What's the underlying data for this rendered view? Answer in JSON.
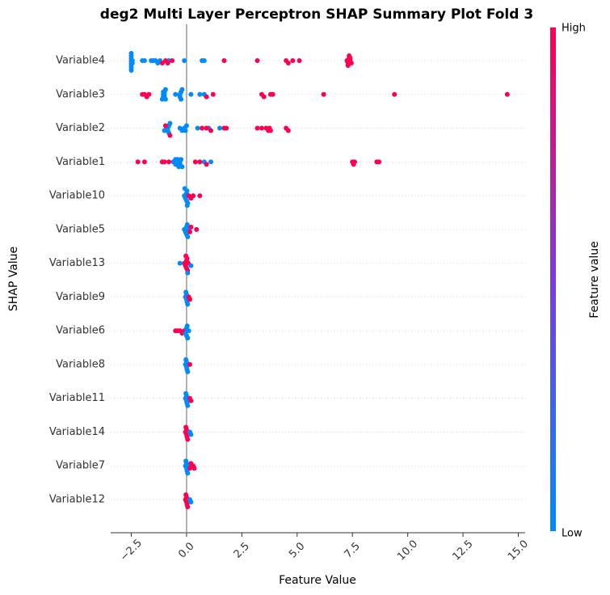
{
  "chart_data": {
    "type": "beeswarm",
    "title": "deg2 Multi Layer Perceptron SHAP Summary Plot Fold 3",
    "xlabel": "Feature Value",
    "ylabel": "SHAP Value",
    "xlim": [
      -3.43,
      15.31
    ],
    "xticks": [
      {
        "value": -2.5,
        "label": "−2.5"
      },
      {
        "value": 0,
        "label": "0.0"
      },
      {
        "value": 2.5,
        "label": "2.5"
      },
      {
        "value": 5,
        "label": "5.0"
      },
      {
        "value": 7.5,
        "label": "7.5"
      },
      {
        "value": 10,
        "label": "10.0"
      },
      {
        "value": 12.5,
        "label": "12.5"
      },
      {
        "value": 15,
        "label": "15.0"
      }
    ],
    "colorbar": {
      "label": "Feature value",
      "high": "High",
      "low": "Low",
      "colors": [
        "#008bfb",
        "#7c3bd9",
        "#ff0051"
      ]
    },
    "series": [
      {
        "name": "Variable4",
        "values": [
          -2.5,
          -2.5,
          -2.5,
          -2.5,
          -2.5,
          -2.5,
          -2.5,
          -2.5,
          -2.45,
          -2.45,
          -2.0,
          -1.9,
          -1.6,
          -1.5,
          -1.4,
          -1.3,
          -1.2,
          -0.8,
          -0.1,
          0.7,
          0.8,
          -1.1,
          -0.95,
          -0.85,
          -0.65,
          1.7,
          3.2,
          4.5,
          4.6,
          4.8,
          5.1,
          7.25,
          7.3,
          7.35,
          7.4,
          7.45,
          7.3,
          7.35,
          7.4
        ],
        "feature_values": [
          0,
          0,
          0,
          0,
          0,
          0,
          0,
          0,
          0,
          0,
          0,
          0,
          0,
          0,
          0,
          0,
          0,
          0,
          0,
          0,
          0,
          1,
          1,
          1,
          1,
          1,
          1,
          1,
          1,
          1,
          1,
          1,
          1,
          1,
          1,
          1,
          1,
          1,
          1
        ]
      },
      {
        "name": "Variable3",
        "values": [
          -1.05,
          -1.05,
          -1.05,
          -1.0,
          -1.0,
          -1.0,
          -0.95,
          -0.95,
          -1.1,
          -0.3,
          -0.3,
          -0.25,
          -0.25,
          -0.2,
          -0.5,
          0.2,
          0.6,
          0.8,
          -2.0,
          -1.9,
          -1.8,
          -1.7,
          0.9,
          1.2,
          3.4,
          3.5,
          3.8,
          3.9,
          6.2,
          9.4,
          14.5
        ],
        "feature_values": [
          0,
          0,
          0,
          0,
          0,
          0,
          0,
          0,
          0,
          0,
          0,
          0,
          0,
          0,
          0,
          0,
          0,
          0,
          1,
          1,
          1,
          1,
          1,
          1,
          1,
          1,
          1,
          1,
          1,
          1,
          1
        ]
      },
      {
        "name": "Variable2",
        "values": [
          -0.9,
          -0.85,
          -0.85,
          -0.8,
          -0.8,
          -0.75,
          -1.0,
          -0.3,
          -0.2,
          -0.1,
          -0.05,
          0.0,
          0.5,
          1.0,
          1.5,
          -0.95,
          -0.75,
          0.7,
          0.9,
          1.1,
          1.7,
          1.8,
          3.2,
          3.4,
          3.6,
          3.7,
          3.75,
          3.8,
          4.5,
          4.6
        ],
        "feature_values": [
          0,
          0,
          0,
          0,
          0,
          0,
          0,
          0,
          0,
          0,
          0,
          0,
          0,
          0,
          0,
          1,
          1,
          1,
          1,
          1,
          1,
          1,
          1,
          1,
          1,
          1,
          1,
          1,
          1,
          1
        ]
      },
      {
        "name": "Variable1",
        "values": [
          -0.6,
          -0.5,
          -0.5,
          -0.45,
          -0.4,
          -0.4,
          -0.35,
          -0.3,
          -0.3,
          -0.25,
          -0.2,
          0.8,
          1.1,
          -2.2,
          -1.9,
          -1.1,
          -1.0,
          -0.8,
          0.4,
          0.6,
          0.9,
          7.5,
          7.6,
          7.55,
          8.6,
          8.7
        ],
        "feature_values": [
          0,
          0,
          0,
          0,
          0,
          0,
          0,
          0,
          0,
          0,
          0,
          0,
          0,
          1,
          1,
          1,
          1,
          1,
          1,
          1,
          1,
          1,
          1,
          1,
          1,
          1
        ]
      },
      {
        "name": "Variable10",
        "values": [
          -0.1,
          -0.05,
          0,
          0,
          0.02,
          0.05,
          -0.08,
          0.03,
          0.1,
          0.2,
          0.3,
          0.6
        ],
        "feature_values": [
          0,
          0,
          0,
          0,
          0,
          0,
          0,
          0,
          1,
          1,
          1,
          1
        ]
      },
      {
        "name": "Variable5",
        "values": [
          -0.1,
          -0.05,
          0,
          0,
          0.03,
          0.05,
          0.1,
          0.15,
          0.2,
          0.45
        ],
        "feature_values": [
          0,
          0,
          0,
          0,
          0,
          0,
          0,
          1,
          1,
          1
        ]
      },
      {
        "name": "Variable13",
        "values": [
          -0.1,
          -0.05,
          0,
          0,
          0.02,
          0.05,
          -0.03,
          0.08,
          -0.3,
          0.2,
          0.05
        ],
        "feature_values": [
          1,
          1,
          1,
          1,
          1,
          1,
          1,
          1,
          0,
          0,
          0
        ]
      },
      {
        "name": "Variable9",
        "values": [
          -0.05,
          0,
          0,
          0.02,
          -0.03,
          0.05,
          0.1,
          0.15
        ],
        "feature_values": [
          0,
          0,
          0,
          0,
          0,
          0,
          1,
          1
        ]
      },
      {
        "name": "Variable6",
        "values": [
          -0.5,
          -0.4,
          -0.3,
          -0.2,
          -0.1,
          -0.05,
          0,
          0,
          0.03,
          0.05,
          0.1
        ],
        "feature_values": [
          1,
          1,
          1,
          1,
          1,
          0,
          0,
          0,
          0,
          0,
          0
        ]
      },
      {
        "name": "Variable8",
        "values": [
          -0.05,
          0,
          0,
          0.02,
          -0.03,
          0.05,
          0.15
        ],
        "feature_values": [
          0,
          0,
          0,
          0,
          0,
          0,
          1
        ]
      },
      {
        "name": "Variable11",
        "values": [
          -0.05,
          0,
          0,
          0.02,
          -0.03,
          0.05,
          0.15,
          0.2
        ],
        "feature_values": [
          0,
          0,
          0,
          0,
          0,
          0,
          1,
          1
        ]
      },
      {
        "name": "Variable14",
        "values": [
          -0.05,
          0,
          0,
          0.02,
          -0.03,
          0.05,
          0.15,
          0.2
        ],
        "feature_values": [
          1,
          1,
          1,
          1,
          1,
          1,
          0,
          0
        ]
      },
      {
        "name": "Variable7",
        "values": [
          -0.05,
          0,
          0,
          0.02,
          -0.03,
          0.05,
          0.08,
          0.15,
          0.2,
          0.3,
          0.35
        ],
        "feature_values": [
          0,
          0,
          0,
          0,
          0,
          0,
          0,
          1,
          1,
          1,
          1
        ]
      },
      {
        "name": "Variable12",
        "values": [
          -0.05,
          0,
          0,
          0.02,
          -0.03,
          0.05,
          0.15,
          0.2
        ],
        "feature_values": [
          1,
          1,
          1,
          1,
          1,
          1,
          0,
          0
        ]
      }
    ]
  }
}
